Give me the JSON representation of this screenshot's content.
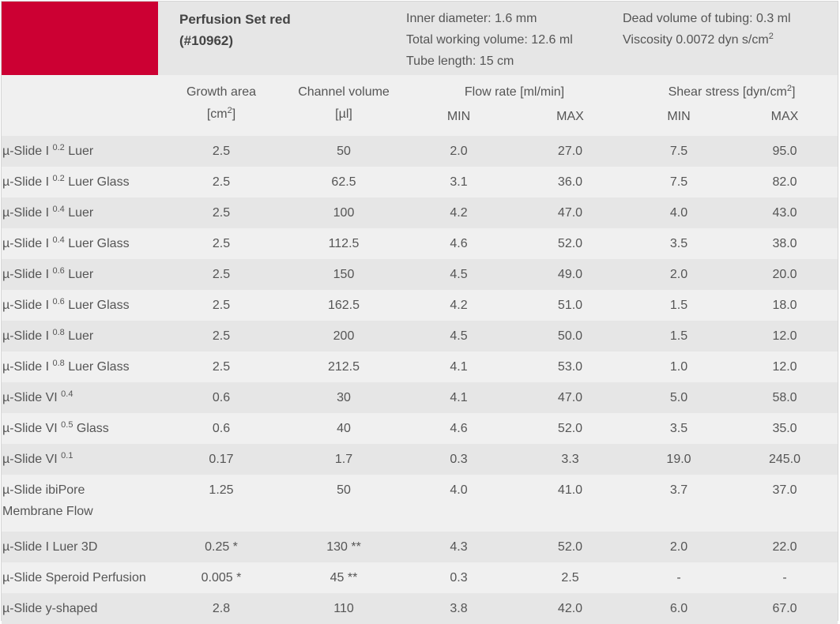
{
  "product": {
    "title_line1": "Perfusion Set red",
    "title_line2": "(#10962)",
    "color": "#cc0033",
    "inner_diameter": "Inner diameter: 1.6 mm",
    "total_working_volume": "Total working volume: 12.6 ml",
    "tube_length": "Tube length: 15 cm",
    "dead_volume": "Dead volume of tubing: 0.3 ml",
    "viscosity": "Viscosity 0.0072 dyn s/cm",
    "viscosity_sup": "2"
  },
  "headers": {
    "growth_area": "Growth area",
    "growth_area_unit": "[cm",
    "growth_area_sup": "2",
    "growth_area_unit_end": "]",
    "channel_volume": "Channel volume",
    "channel_volume_unit": "[µl]",
    "flow_rate": "Flow rate [ml/min]",
    "shear_stress": "Shear stress [dyn/cm",
    "shear_stress_sup": "2",
    "shear_stress_end": "]",
    "min": "MIN",
    "max": "MAX"
  },
  "rows": [
    {
      "name": "µ-Slide I ",
      "sup": "0.2",
      "suffix": " Luer",
      "cells": [
        "2.5",
        "50",
        "2.0",
        "27.0",
        "7.5",
        "95.0"
      ]
    },
    {
      "name": "µ-Slide I ",
      "sup": "0.2",
      "suffix": " Luer Glass",
      "cells": [
        "2.5",
        "62.5",
        "3.1",
        "36.0",
        "7.5",
        "82.0"
      ]
    },
    {
      "name": "µ-Slide I ",
      "sup": "0.4",
      "suffix": " Luer",
      "cells": [
        "2.5",
        "100",
        "4.2",
        "47.0",
        "4.0",
        "43.0"
      ]
    },
    {
      "name": "µ-Slide I ",
      "sup": "0.4",
      "suffix": " Luer Glass",
      "cells": [
        "2.5",
        "112.5",
        "4.6",
        "52.0",
        "3.5",
        "38.0"
      ]
    },
    {
      "name": "µ-Slide I ",
      "sup": "0.6",
      "suffix": " Luer",
      "cells": [
        "2.5",
        "150",
        "4.5",
        "49.0",
        "2.0",
        "20.0"
      ]
    },
    {
      "name": "µ-Slide I ",
      "sup": "0.6",
      "suffix": " Luer Glass",
      "cells": [
        "2.5",
        "162.5",
        "4.2",
        "51.0",
        "1.5",
        "18.0"
      ]
    },
    {
      "name": "µ-Slide I ",
      "sup": "0.8",
      "suffix": " Luer",
      "cells": [
        "2.5",
        "200",
        "4.5",
        "50.0",
        "1.5",
        "12.0"
      ]
    },
    {
      "name": "µ-Slide I ",
      "sup": "0.8",
      "suffix": " Luer Glass",
      "cells": [
        "2.5",
        "212.5",
        "4.1",
        "53.0",
        "1.0",
        "12.0"
      ]
    },
    {
      "name": "µ-Slide VI ",
      "sup": "0.4",
      "suffix": "",
      "cells": [
        "0.6",
        "30",
        "4.1",
        "47.0",
        "5.0",
        "58.0"
      ]
    },
    {
      "name": "µ-Slide VI ",
      "sup": "0.5",
      "suffix": " Glass",
      "cells": [
        "0.6",
        "40",
        "4.6",
        "52.0",
        "3.5",
        "35.0"
      ]
    },
    {
      "name": "µ-Slide VI ",
      "sup": "0.1",
      "suffix": "",
      "cells": [
        "0.17",
        "1.7",
        "0.3",
        "3.3",
        "19.0",
        "245.0"
      ]
    },
    {
      "name": "µ-Slide ibiPore Membrane Flow",
      "sup": "",
      "suffix": "",
      "cells": [
        "1.25",
        "50",
        "4.0",
        "41.0",
        "3.7",
        "37.0"
      ]
    },
    {
      "name": "µ-Slide I Luer 3D",
      "sup": "",
      "suffix": "",
      "cells": [
        "0.25 *",
        "130 **",
        "4.3",
        "52.0",
        "2.0",
        "22.0"
      ]
    },
    {
      "name": "µ-Slide Speroid Perfusion",
      "sup": "",
      "suffix": "",
      "cells": [
        "0.005 *",
        "45 **",
        "0.3",
        "2.5",
        "-",
        "-"
      ]
    },
    {
      "name": "µ-Slide y-shaped",
      "sup": "",
      "suffix": "",
      "cells": [
        "2.8",
        "110",
        "3.8",
        "42.0",
        "6.0",
        "67.0"
      ]
    }
  ]
}
